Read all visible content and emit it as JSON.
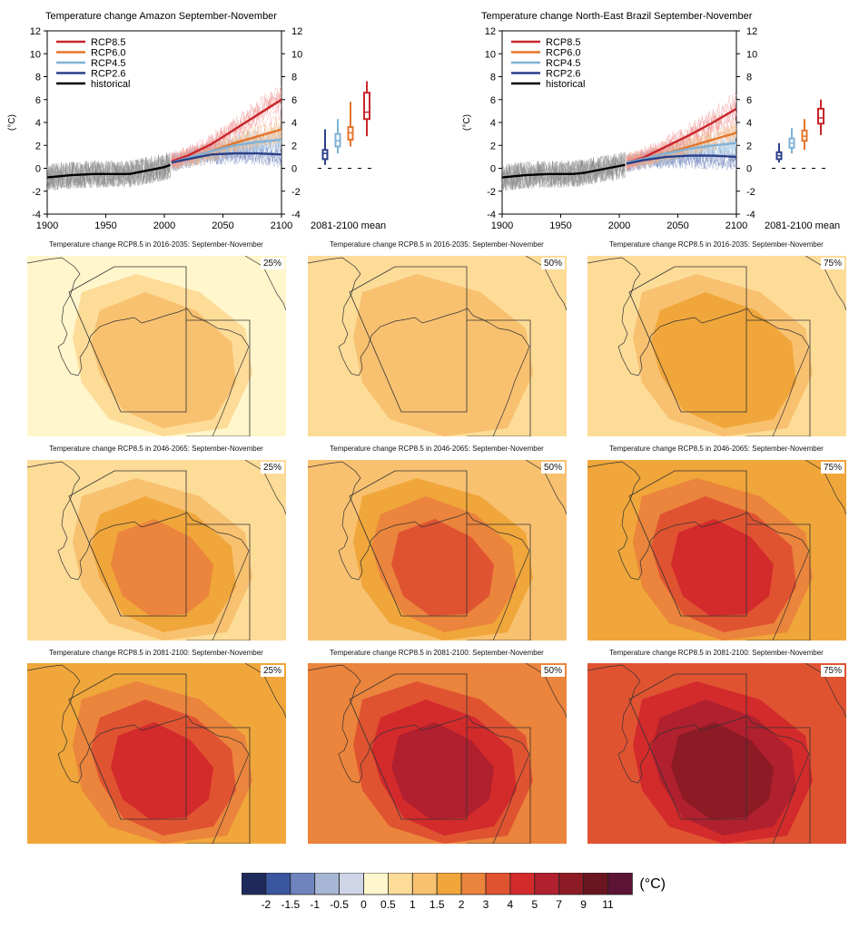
{
  "timeseries_panels": [
    {
      "title": "Temperature change Amazon September-November"
    },
    {
      "title": "Temperature change North-East Brazil September-November"
    }
  ],
  "map_panels": [
    {
      "title": "Temperature change RCP8.5 in 2016-2035: September-November",
      "pct": "25%"
    },
    {
      "title": "Temperature change RCP8.5 in 2016-2035: September-November",
      "pct": "50%"
    },
    {
      "title": "Temperature change RCP8.5 in 2016-2035: September-November",
      "pct": "75%"
    },
    {
      "title": "Temperature change RCP8.5 in 2046-2065: September-November",
      "pct": "25%"
    },
    {
      "title": "Temperature change RCP8.5 in 2046-2065: September-November",
      "pct": "50%"
    },
    {
      "title": "Temperature change RCP8.5 in 2046-2065: September-November",
      "pct": "75%"
    },
    {
      "title": "Temperature change RCP8.5 in 2081-2100: September-November",
      "pct": "25%"
    },
    {
      "title": "Temperature change RCP8.5 in 2081-2100: September-November",
      "pct": "50%"
    },
    {
      "title": "Temperature change RCP8.5 in 2081-2100: September-November",
      "pct": "75%"
    }
  ],
  "colorbar": {
    "unit": "(°C)",
    "colors": [
      "#1f2a5c",
      "#3b56a0",
      "#6f84bd",
      "#a8b6d6",
      "#cfd5e6",
      "#fff6cc",
      "#fddc98",
      "#f8c170",
      "#f0a63a",
      "#eb843c",
      "#e05331",
      "#d32a2c",
      "#b0202e",
      "#8c1b25",
      "#6a1520",
      "#5c1435"
    ],
    "labels": [
      "-2",
      "-1.5",
      "-1",
      "-0.5",
      "0",
      "0.5",
      "1",
      "1.5",
      "2",
      "3",
      "4",
      "5",
      "7",
      "9",
      "11"
    ]
  },
  "chart_data": [
    {
      "type": "line",
      "title": "Temperature change Amazon September-November",
      "ylabel": "(°C)",
      "xlim": [
        1900,
        2100
      ],
      "ylim": [
        -4,
        12
      ],
      "xticks": [
        "1900",
        "1950",
        "2000",
        "2050",
        "2100"
      ],
      "yticks": [
        "-4",
        "-2",
        "0",
        "2",
        "4",
        "6",
        "8",
        "10",
        "12"
      ],
      "box_label": "2081-2100 mean",
      "series": [
        {
          "name": "RCP8.5",
          "color": "#c8262c",
          "x": [
            2006,
            2020,
            2040,
            2060,
            2080,
            2100
          ],
          "y": [
            0.6,
            1.1,
            2.1,
            3.4,
            4.7,
            6.0
          ]
        },
        {
          "name": "RCP6.0",
          "color": "#e4752c",
          "x": [
            2006,
            2020,
            2040,
            2060,
            2080,
            2100
          ],
          "y": [
            0.5,
            0.9,
            1.5,
            2.2,
            2.8,
            3.4
          ]
        },
        {
          "name": "RCP4.5",
          "color": "#7fb2d6",
          "x": [
            2006,
            2020,
            2040,
            2060,
            2080,
            2100
          ],
          "y": [
            0.5,
            0.9,
            1.5,
            2.0,
            2.3,
            2.5
          ]
        },
        {
          "name": "RCP2.6",
          "color": "#2a3f88",
          "x": [
            2006,
            2020,
            2040,
            2060,
            2080,
            2100
          ],
          "y": [
            0.5,
            0.8,
            1.2,
            1.3,
            1.3,
            1.2
          ]
        },
        {
          "name": "historical",
          "color": "#000000",
          "x": [
            1900,
            1920,
            1940,
            1960,
            1970,
            1980,
            1990,
            2000,
            2005
          ],
          "y": [
            -0.8,
            -0.6,
            -0.5,
            -0.5,
            -0.5,
            -0.3,
            -0.1,
            0.1,
            0.3
          ]
        }
      ],
      "boxes": [
        {
          "name": "RCP2.6",
          "color": "#2a3f88",
          "min": 0.3,
          "q1": 0.8,
          "median": 1.3,
          "q3": 1.6,
          "max": 3.4
        },
        {
          "name": "RCP4.5",
          "color": "#7fb2d6",
          "min": 1.3,
          "q1": 1.9,
          "median": 2.4,
          "q3": 3.0,
          "max": 4.3
        },
        {
          "name": "RCP6.0",
          "color": "#e4752c",
          "min": 1.9,
          "q1": 2.5,
          "median": 3.1,
          "q3": 3.6,
          "max": 5.8
        },
        {
          "name": "RCP8.5",
          "color": "#c8262c",
          "min": 2.8,
          "q1": 4.3,
          "median": 4.9,
          "q3": 6.6,
          "max": 7.6
        }
      ]
    },
    {
      "type": "line",
      "title": "Temperature change North-East Brazil September-November",
      "ylabel": "(°C)",
      "xlim": [
        1900,
        2100
      ],
      "ylim": [
        -4,
        12
      ],
      "xticks": [
        "1900",
        "1950",
        "2000",
        "2050",
        "2100"
      ],
      "yticks": [
        "-4",
        "-2",
        "0",
        "2",
        "4",
        "6",
        "8",
        "10",
        "12"
      ],
      "box_label": "2081-2100 mean",
      "series": [
        {
          "name": "RCP8.5",
          "color": "#c8262c",
          "x": [
            2006,
            2020,
            2040,
            2060,
            2080,
            2100
          ],
          "y": [
            0.5,
            0.9,
            1.9,
            2.9,
            4.0,
            5.2
          ]
        },
        {
          "name": "RCP6.0",
          "color": "#e4752c",
          "x": [
            2006,
            2020,
            2040,
            2060,
            2080,
            2100
          ],
          "y": [
            0.5,
            0.8,
            1.3,
            1.9,
            2.5,
            3.1
          ]
        },
        {
          "name": "RCP4.5",
          "color": "#7fb2d6",
          "x": [
            2006,
            2020,
            2040,
            2060,
            2080,
            2100
          ],
          "y": [
            0.5,
            0.8,
            1.3,
            1.7,
            2.0,
            2.2
          ]
        },
        {
          "name": "RCP2.6",
          "color": "#2a3f88",
          "x": [
            2006,
            2020,
            2040,
            2060,
            2080,
            2100
          ],
          "y": [
            0.4,
            0.7,
            1.0,
            1.1,
            1.1,
            1.0
          ]
        },
        {
          "name": "historical",
          "color": "#000000",
          "x": [
            1900,
            1920,
            1940,
            1960,
            1970,
            1980,
            1990,
            2000,
            2005
          ],
          "y": [
            -0.8,
            -0.6,
            -0.5,
            -0.5,
            -0.4,
            -0.2,
            0.0,
            0.2,
            0.3
          ]
        }
      ],
      "boxes": [
        {
          "name": "RCP2.6",
          "color": "#2a3f88",
          "min": 0.5,
          "q1": 0.8,
          "median": 1.1,
          "q3": 1.4,
          "max": 2.2
        },
        {
          "name": "RCP4.5",
          "color": "#7fb2d6",
          "min": 1.3,
          "q1": 1.8,
          "median": 2.2,
          "q3": 2.6,
          "max": 3.5
        },
        {
          "name": "RCP6.0",
          "color": "#e4752c",
          "min": 1.6,
          "q1": 2.4,
          "median": 2.8,
          "q3": 3.3,
          "max": 4.3
        },
        {
          "name": "RCP8.5",
          "color": "#c8262c",
          "min": 2.9,
          "q1": 3.9,
          "median": 4.4,
          "q3": 5.2,
          "max": 6.0
        }
      ]
    },
    {
      "type": "heatmap",
      "panels": [
        {
          "period": "2016-2035",
          "percentile": "25%",
          "levels": [
            5,
            6,
            7
          ]
        },
        {
          "period": "2016-2035",
          "percentile": "50%",
          "levels": [
            6,
            7
          ]
        },
        {
          "period": "2016-2035",
          "percentile": "75%",
          "levels": [
            6,
            7,
            8
          ]
        },
        {
          "period": "2046-2065",
          "percentile": "25%",
          "levels": [
            6,
            7,
            8,
            9
          ]
        },
        {
          "period": "2046-2065",
          "percentile": "50%",
          "levels": [
            7,
            8,
            9,
            10
          ]
        },
        {
          "period": "2046-2065",
          "percentile": "75%",
          "levels": [
            8,
            9,
            10,
            11
          ]
        },
        {
          "period": "2081-2100",
          "percentile": "25%",
          "levels": [
            8,
            9,
            10,
            11
          ]
        },
        {
          "period": "2081-2100",
          "percentile": "50%",
          "levels": [
            9,
            10,
            11,
            12
          ]
        },
        {
          "period": "2081-2100",
          "percentile": "75%",
          "levels": [
            10,
            11,
            12,
            13
          ]
        }
      ]
    }
  ]
}
